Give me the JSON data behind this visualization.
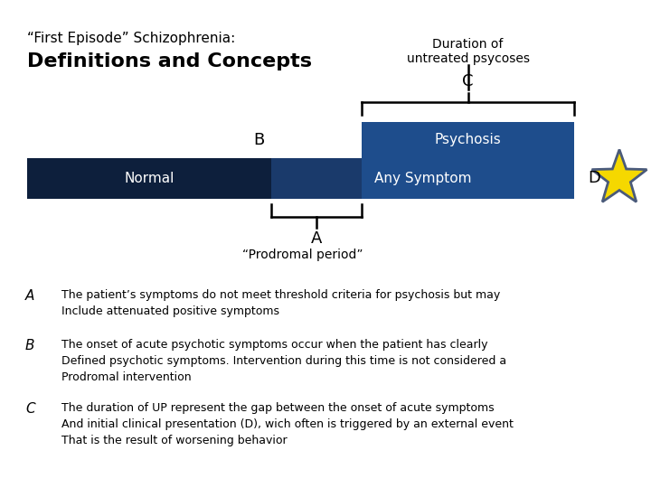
{
  "title_line1": "“First Episode” Schizophrenia:",
  "title_line2": "Definitions and Concepts",
  "duration_label": "Duration of\nuntreated psycoses",
  "label_C": "C",
  "label_B": "B",
  "label_A": "A",
  "label_D": "D",
  "prodromal_label": "“Prodromal period”",
  "normal_label": "Normal",
  "psychosis_label": "Psychosis",
  "any_symptom_label": "Any Symptom",
  "color_normal": "#0d1f3c",
  "color_any_symptom": "#1a3a6b",
  "color_psychosis": "#1e4d8c",
  "color_text_white": "#ffffff",
  "color_black": "#000000",
  "color_star_fill": "#f5d800",
  "color_star_edge": "#4a5a7a",
  "bg_color": "#ffffff",
  "text_A": "The patient’s symptoms do not meet threshold criteria for psychosis but may\nInclude attenuated positive symptoms",
  "text_B": "The onset of acute psychotic symptoms occur when the patient has clearly\nDefined psychotic symptoms. Intervention during this time is not considered a\nProdromal intervention",
  "text_C": "The duration of UP represent the gap between the onset of acute symptoms\nAnd initial clinical presentation (D), wich often is triggered by an external event\nThat is the result of worsening behavior"
}
